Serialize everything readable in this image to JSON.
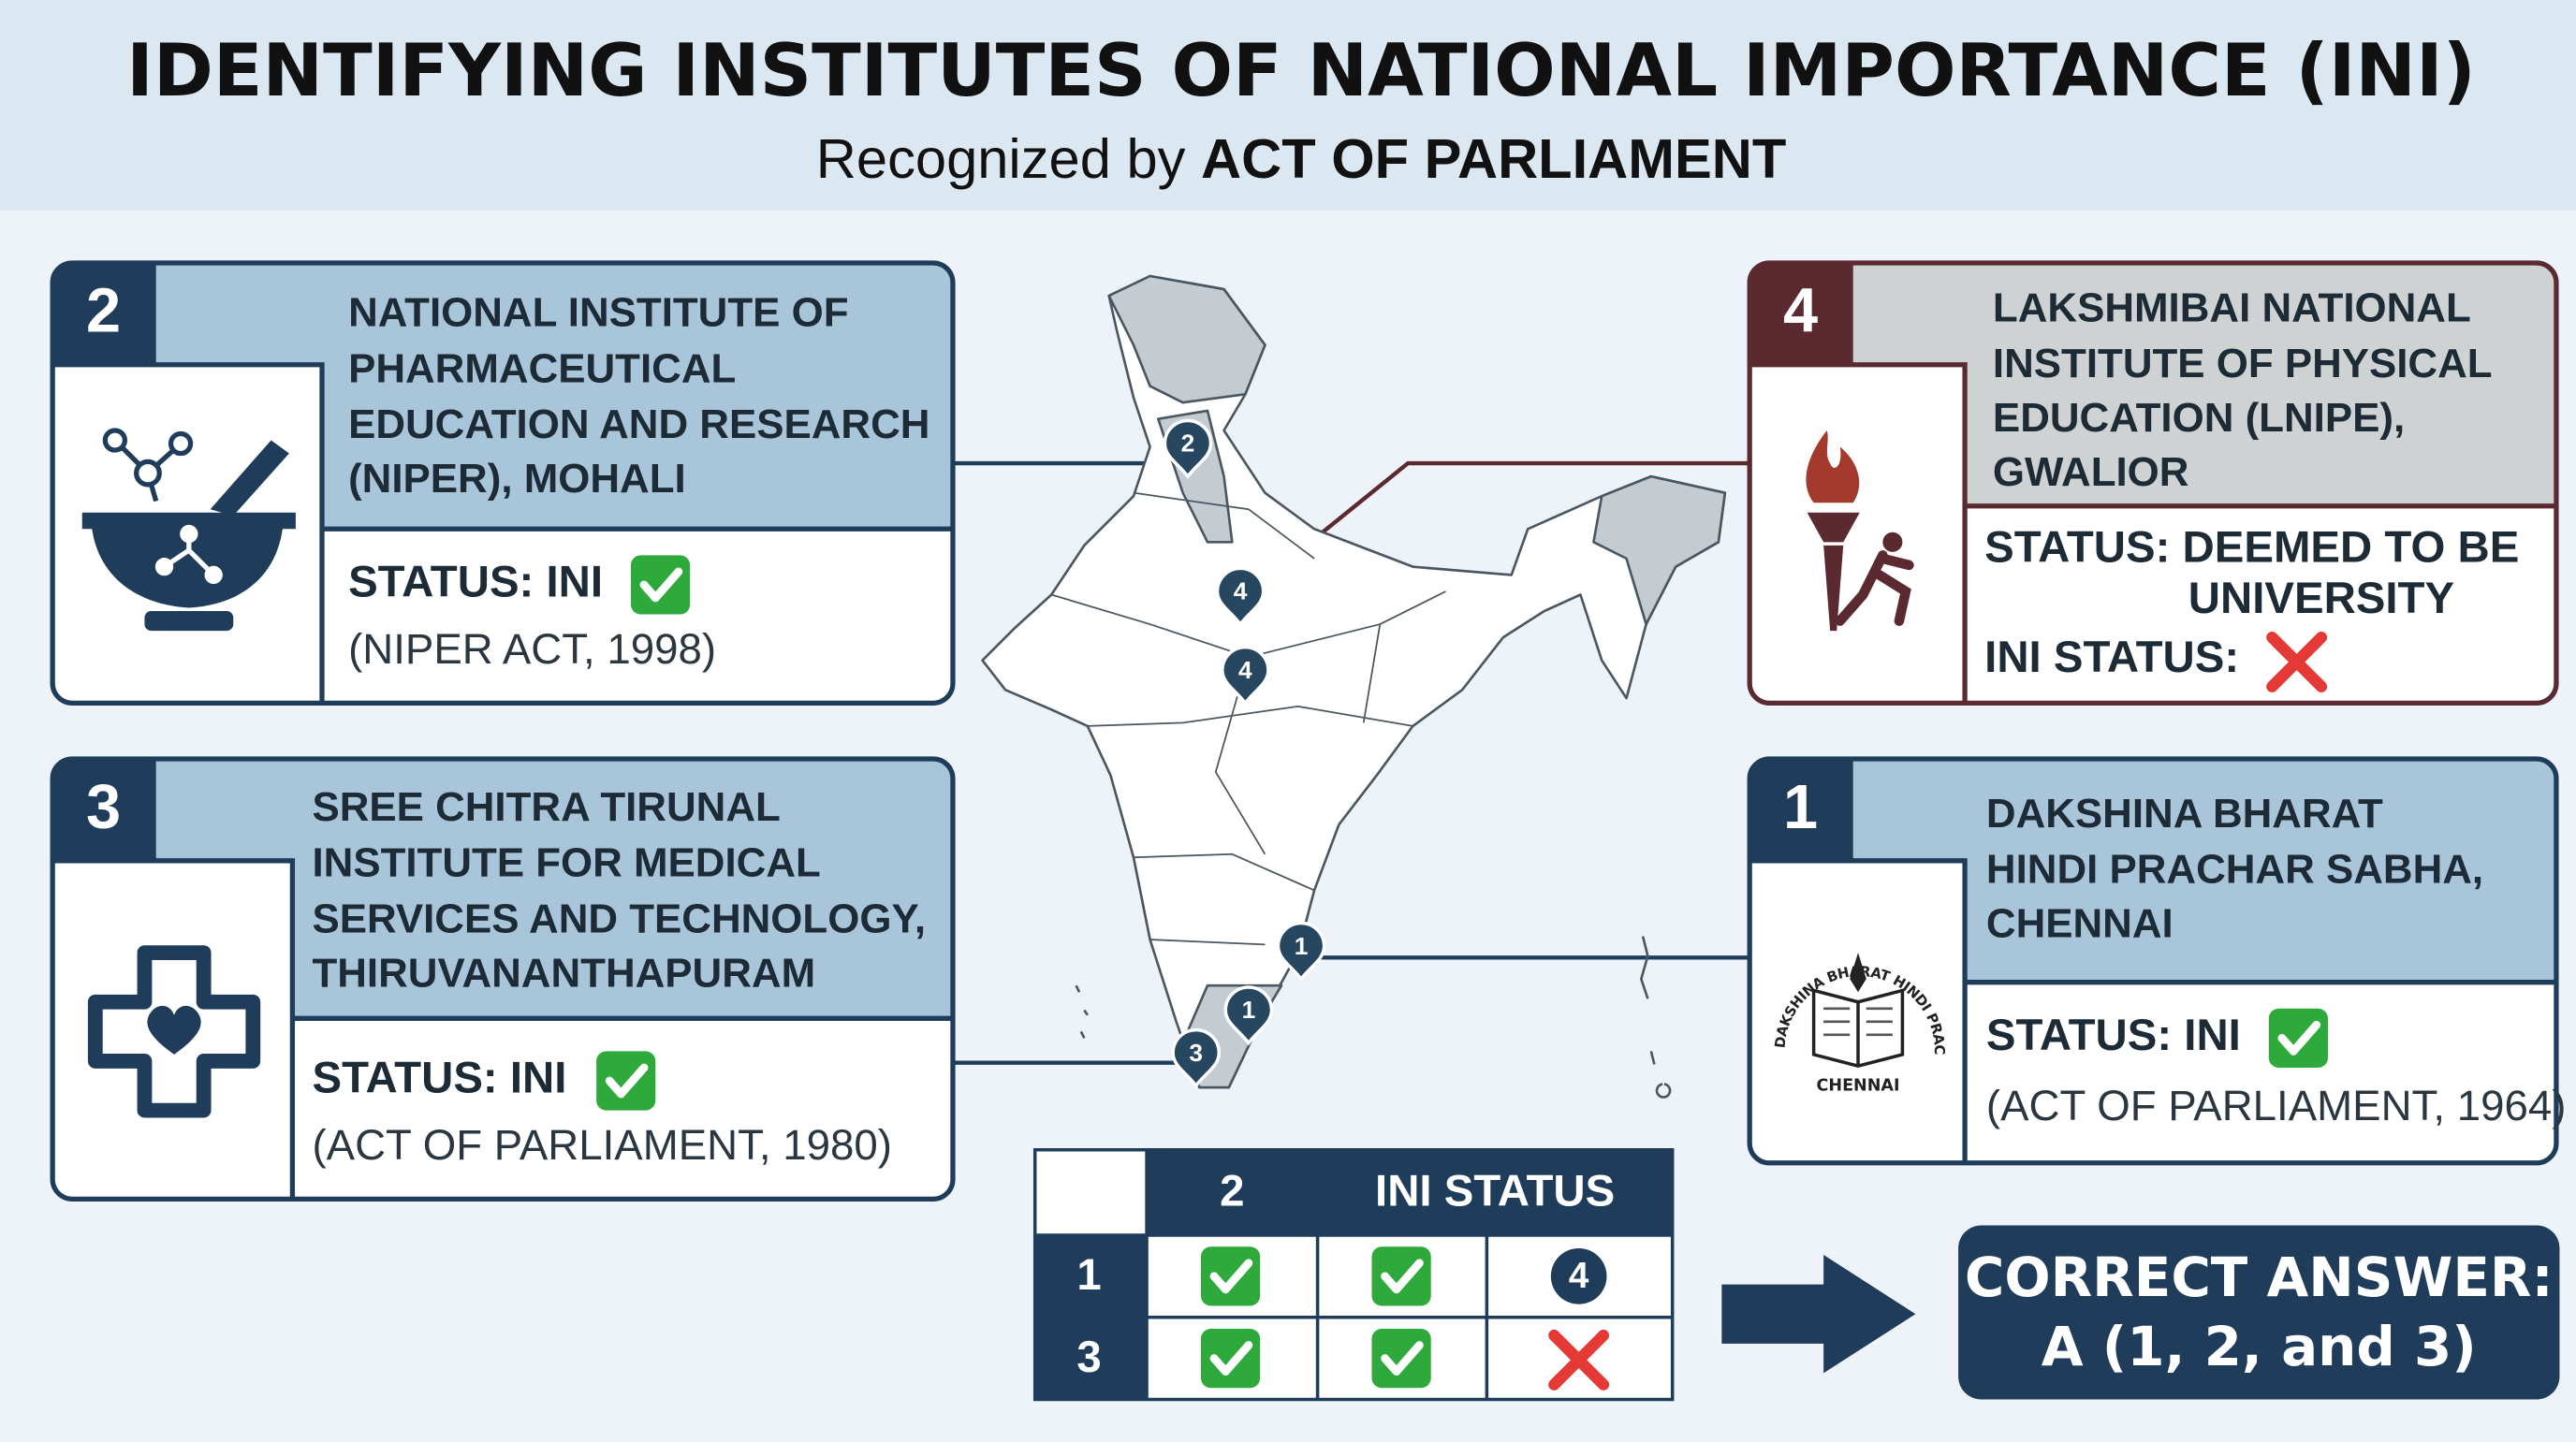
{
  "header": {
    "title": "IDENTIFYING INSTITUTES OF NATIONAL IMPORTANCE (INI)",
    "subtitle": "Recognized by",
    "subtitle_emphasis": "ACT OF PARLIAMENT"
  },
  "cards": [
    {
      "number": "2",
      "name": [
        "NATIONAL INSTITUTE OF",
        "PHARMACEUTICAL",
        "EDUCATION AND RESEARCH",
        "(NIPER), MOHALI"
      ],
      "status": [
        "STATUS: INI"
      ],
      "note": "(NIPER ACT, 1998)"
    },
    {
      "number": "3",
      "name": [
        "SREE CHITRA TIRUNAL",
        "INSTITUTE FOR MEDICAL",
        "SERVICES AND TECHNOLOGY,",
        "THIRUVANANTHAPURAM"
      ],
      "status": [
        "STATUS: INI"
      ],
      "note": "(ACT OF PARLIAMENT, 1980)"
    },
    {
      "number": "4",
      "name": [
        "LAKSHMIBAI NATIONAL",
        "INSTITUTE OF PHYSICAL",
        "EDUCATION (LNIPE),",
        "GWALIOR"
      ],
      "status": [
        "STATUS: DEEMED TO BE",
        "UNIVERSITY",
        "INI STATUS:"
      ]
    },
    {
      "number": "1",
      "name": [
        "DAKSHINA BHARAT",
        "HINDI PRACHAR SABHA,",
        "CHENNAI"
      ],
      "status": [
        "STATUS: INI"
      ],
      "note": "(ACT OF PARLIAMENT, 1964)",
      "seal": [
        "DAKSHINA BHARAT HINDI PRACHAR SABHA",
        "CHENNAI"
      ]
    }
  ],
  "map_pins": [
    "2",
    "4",
    "4",
    "1",
    "1",
    "3"
  ],
  "table": {
    "header": [
      "2",
      "INI STATUS"
    ],
    "rows": [
      {
        "label": "1",
        "marker": "4"
      },
      {
        "label": "3"
      }
    ]
  },
  "answer": [
    "CORRECT ANSWER:",
    "A (1, 2, and 3)"
  ]
}
